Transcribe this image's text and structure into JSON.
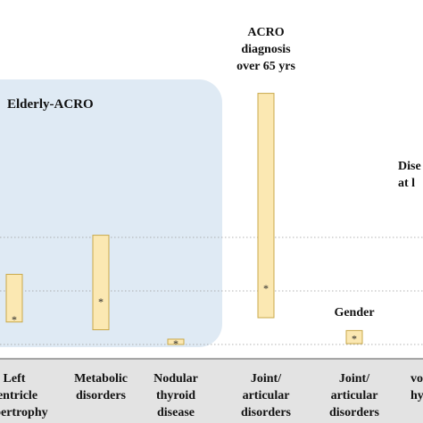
{
  "chart_data": {
    "type": "bar",
    "style": "floating-range",
    "categories": [
      "Left\nventricle\nhypertrophy",
      "Metabolic\ndisorders",
      "Nodular\nthyroid\ndisease",
      "Joint/\narticular\ndisorders",
      "Joint/\narticular\ndisorders",
      "Cardio-\nvascular\nhypertension"
    ],
    "category_labels": [
      [
        "Left",
        "ventricle",
        "hypertrophy"
      ],
      [
        "Metabolic",
        "disorders"
      ],
      [
        "Nodular",
        "thyroid",
        "disease"
      ],
      [
        "Joint/",
        "articular",
        "disorders"
      ],
      [
        "Joint/",
        "articular",
        "disorders"
      ],
      [
        "vo",
        "hyp"
      ]
    ],
    "bars": [
      {
        "low": 0.84,
        "high": 2.62,
        "point": 0.97
      },
      {
        "low": 0.55,
        "high": 4.08,
        "point": 1.64
      },
      {
        "low": 0.0,
        "high": 0.2,
        "point": 0.07
      },
      {
        "low": 1.0,
        "high": 9.38,
        "point": 2.13
      },
      {
        "low": 0.03,
        "high": 0.52,
        "point": 0.25
      },
      null
    ],
    "point_marker": "*",
    "reference_lines": [
      {
        "value": 0.0,
        "style": "dotted"
      },
      {
        "value": 2.0,
        "style": "dotted"
      },
      {
        "value": 4.0,
        "style": "dotted"
      }
    ],
    "groups": [
      {
        "label": "Elderly-ACRO",
        "categories": [
          0,
          1,
          2
        ],
        "color": "#dce8f3"
      }
    ],
    "annotations": [
      {
        "text": [
          "ACRO",
          "diagnosis",
          "over 65 yrs"
        ],
        "category": 3
      },
      {
        "text": [
          "Gender"
        ],
        "category": 4
      },
      {
        "text": [
          "Dise",
          "at l"
        ],
        "category": 5
      }
    ],
    "ylim": [
      -0.2,
      10.2
    ],
    "bar_color": "#fbe8b2",
    "bar_edge": "#c8a84a",
    "band_color": "#e2e2e2"
  }
}
